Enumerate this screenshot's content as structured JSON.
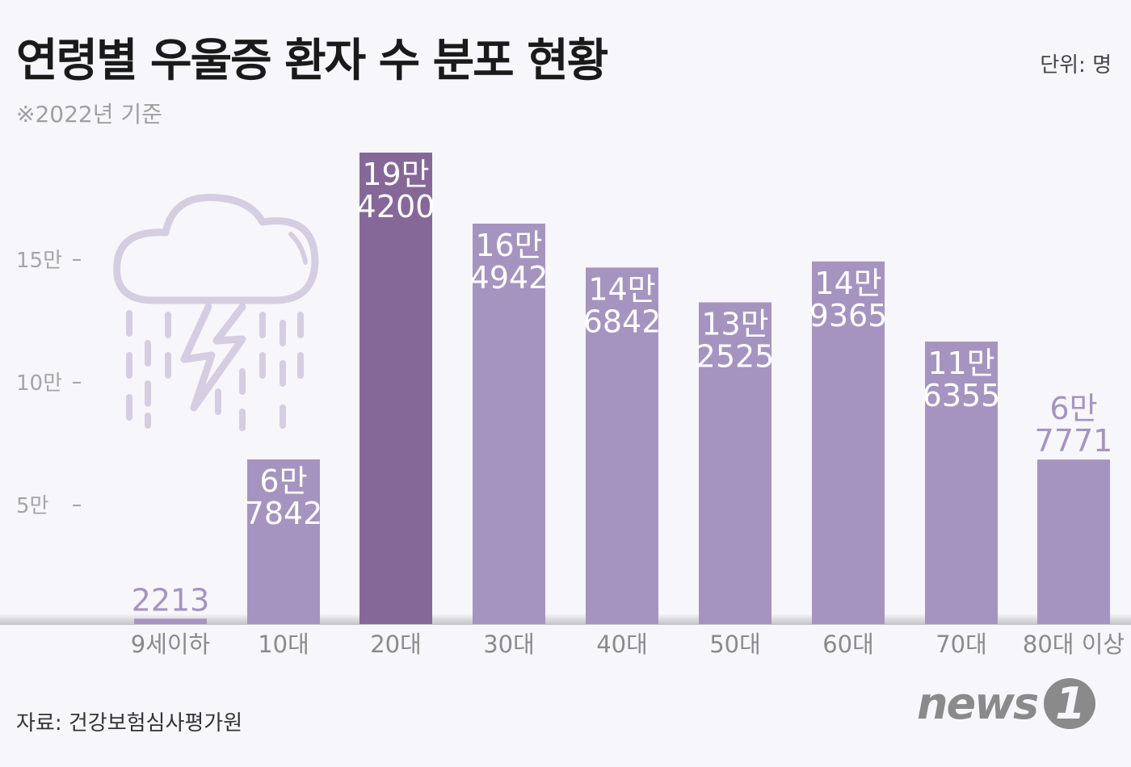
{
  "title": "연령별 우울증 환자 수 분포 현황",
  "subtitle": "※2022년 기준",
  "unit": "단위: 명",
  "source": "자료: 건강보험심사평가원",
  "logo": "news1",
  "colors": {
    "bar": "#a594c0",
    "highlight": "#856898",
    "label_outside": "#a594c0",
    "background": "#f7f6fa"
  },
  "chart_data": {
    "type": "bar",
    "title": "연령별 우울증 환자 수 분포 현황",
    "xlabel": "",
    "ylabel": "",
    "ylim": [
      0,
      200000
    ],
    "yticks": [
      {
        "value": 50000,
        "label": "5만"
      },
      {
        "value": 100000,
        "label": "10만"
      },
      {
        "value": 150000,
        "label": "15만"
      }
    ],
    "grid": false,
    "categories": [
      "9세이하",
      "10대",
      "20대",
      "30대",
      "40대",
      "50대",
      "60대",
      "70대",
      "80대 이상"
    ],
    "values": [
      2213,
      67842,
      194200,
      164942,
      146842,
      132525,
      149365,
      116355,
      67771
    ],
    "data_labels": [
      [
        "2213"
      ],
      [
        "6만",
        "7842"
      ],
      [
        "19만",
        "4200"
      ],
      [
        "16만",
        "4942"
      ],
      [
        "14만",
        "6842"
      ],
      [
        "13만",
        "2525"
      ],
      [
        "14만",
        "9365"
      ],
      [
        "11만",
        "6355"
      ],
      [
        "6만",
        "7771"
      ]
    ],
    "highlight_category": "20대"
  }
}
